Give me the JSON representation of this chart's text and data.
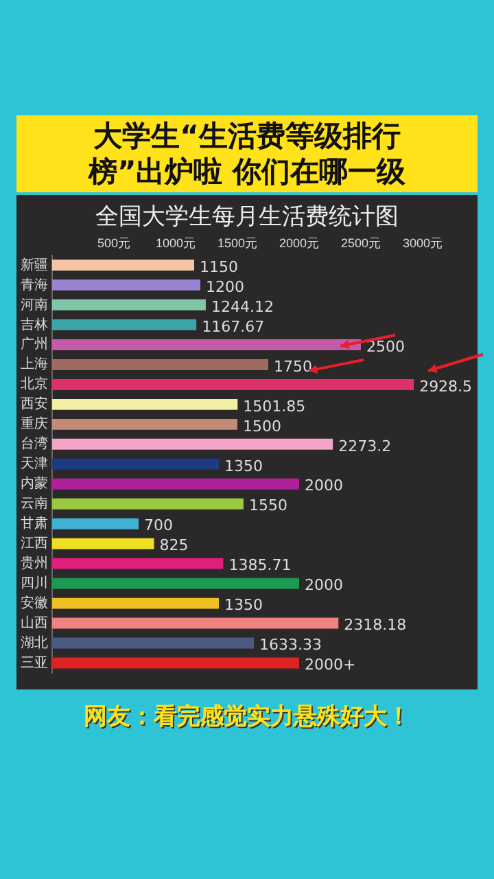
{
  "chart_data": {
    "type": "bar",
    "orientation": "horizontal",
    "title": "大学生“生活费等级排行榜”出炉啦 你们在哪一级",
    "subtitle": "全国大学生每月生活费统计图",
    "categories": [
      "新疆",
      "青海",
      "河南",
      "吉林",
      "广州",
      "上海",
      "北京",
      "西安",
      "重庆",
      "台湾",
      "天津",
      "内蒙",
      "云南",
      "甘肃",
      "江西",
      "贵州",
      "四川",
      "安徽",
      "山西",
      "湖北",
      "三亚"
    ],
    "values": [
      1150,
      1200,
      1244.12,
      1167.67,
      2500,
      1750,
      2928.5,
      1501.85,
      1500,
      2273.2,
      1350,
      2000,
      1550,
      700,
      825,
      1385.71,
      2000,
      1350,
      2318.18,
      1633.33,
      2000
    ],
    "value_labels": [
      "1150",
      "1200",
      "1244.12",
      "1167.67",
      "2500",
      "1750",
      "2928.5",
      "1501.85",
      "1500",
      "2273.2",
      "1350",
      "2000",
      "1550",
      "700",
      "825",
      "1385.71",
      "2000",
      "1350",
      "2318.18",
      "1633.33",
      "2000+"
    ],
    "colors": [
      "#f4c4a4",
      "#9a82d2",
      "#80c6a8",
      "#3aa4a6",
      "#c45aa8",
      "#a06a60",
      "#e0306a",
      "#f2eea2",
      "#c48a78",
      "#f4a4c4",
      "#1e3a82",
      "#b0209a",
      "#9ac840",
      "#42b2d2",
      "#f0e022",
      "#e0207a",
      "#1a9a52",
      "#f0c022",
      "#f08282",
      "#4a5a82",
      "#e02222"
    ],
    "xlim": [
      0,
      3000
    ],
    "xticks": [
      {
        "value": 500,
        "label": "500元"
      },
      {
        "value": 1000,
        "label": "1000元"
      },
      {
        "value": 1500,
        "label": "1500元"
      },
      {
        "value": 2000,
        "label": "2000元"
      },
      {
        "value": 2500,
        "label": "2500元"
      },
      {
        "value": 3000,
        "label": "3000元"
      }
    ],
    "grid": false,
    "annotations": [
      "网友：看完感觉实力悬殊好大！"
    ]
  }
}
